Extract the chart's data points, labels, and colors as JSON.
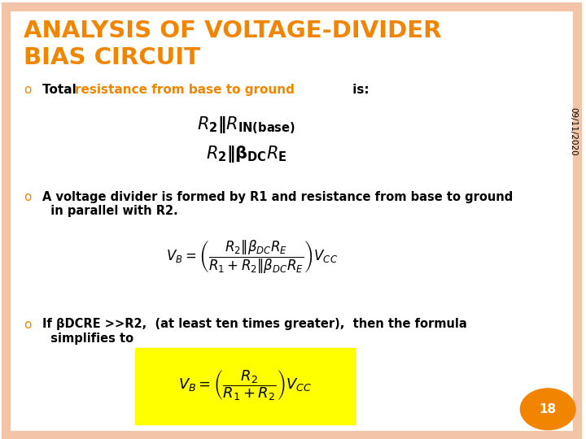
{
  "title_line1": "ANALYSIS OF VOLTAGE-DIVIDER",
  "title_line2": "BIAS CIRCUIT",
  "title_color": "#F28500",
  "bg_color": "#FFFFFF",
  "border_color": "#F4C4A8",
  "date_text": "09/11/2020",
  "date_color": "#000000",
  "bullet_color": "#F28500",
  "bullet_char": "o",
  "body_text_color": "#000000",
  "highlight_color": "#F28500",
  "formula3_bg": "#FFFF00",
  "page_number": "18",
  "page_circle_color": "#F28500",
  "page_number_color": "#FFFFFF"
}
